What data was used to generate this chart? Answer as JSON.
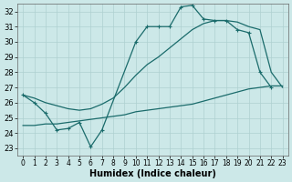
{
  "xlabel": "Humidex (Indice chaleur)",
  "bg_color": "#cce8e8",
  "grid_color": "#aed0d0",
  "line_color": "#1a6b6b",
  "xlim": [
    -0.5,
    23.5
  ],
  "ylim": [
    22.5,
    32.5
  ],
  "xticks": [
    0,
    1,
    2,
    3,
    4,
    5,
    6,
    7,
    8,
    9,
    10,
    11,
    12,
    13,
    14,
    15,
    16,
    17,
    18,
    19,
    20,
    21,
    22,
    23
  ],
  "yticks": [
    23,
    24,
    25,
    26,
    27,
    28,
    29,
    30,
    31,
    32
  ],
  "jagged_x": [
    0,
    1,
    2,
    3,
    4,
    5,
    6,
    7,
    10,
    11,
    12,
    13,
    14,
    15,
    16,
    17,
    18,
    19,
    20,
    21,
    22
  ],
  "jagged_y": [
    26.5,
    26.0,
    25.3,
    24.2,
    24.3,
    24.7,
    23.1,
    24.2,
    30.0,
    31.0,
    31.0,
    31.0,
    32.3,
    32.4,
    31.5,
    31.4,
    31.4,
    30.8,
    30.6,
    28.0,
    27.0
  ],
  "smooth_x": [
    0,
    1,
    2,
    3,
    4,
    5,
    6,
    7,
    8,
    9,
    10,
    11,
    12,
    13,
    14,
    15,
    16,
    17,
    18,
    19,
    20,
    21,
    22,
    23
  ],
  "smooth_y": [
    26.5,
    26.3,
    26.0,
    25.8,
    25.6,
    25.5,
    25.6,
    25.9,
    26.3,
    27.0,
    27.8,
    28.5,
    29.0,
    29.6,
    30.2,
    30.8,
    31.2,
    31.4,
    31.4,
    31.3,
    31.0,
    30.8,
    28.0,
    27.0
  ],
  "lower_x": [
    0,
    1,
    2,
    3,
    4,
    5,
    6,
    7,
    8,
    9,
    10,
    11,
    12,
    13,
    14,
    15,
    16,
    17,
    18,
    19,
    20,
    21,
    22,
    23
  ],
  "lower_y": [
    24.5,
    24.5,
    24.6,
    24.6,
    24.7,
    24.8,
    24.9,
    25.0,
    25.1,
    25.2,
    25.4,
    25.5,
    25.6,
    25.7,
    25.8,
    25.9,
    26.1,
    26.3,
    26.5,
    26.7,
    26.9,
    27.0,
    27.1,
    27.1
  ]
}
